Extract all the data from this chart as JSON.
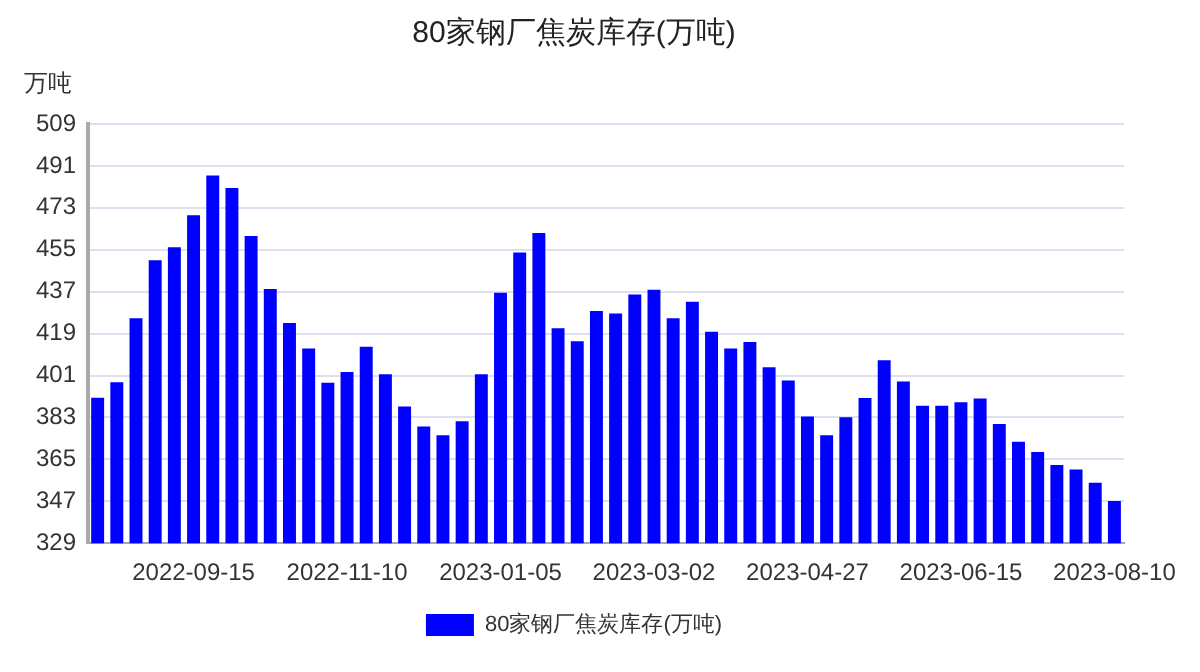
{
  "chart_data": {
    "type": "bar",
    "title": "80家钢厂焦炭库存(万吨)",
    "ylabel": "万吨",
    "categories": [
      null,
      null,
      null,
      null,
      null,
      "2022-09-15",
      null,
      null,
      null,
      null,
      null,
      null,
      null,
      "2022-11-10",
      null,
      null,
      null,
      null,
      null,
      null,
      null,
      "2023-01-05",
      null,
      null,
      null,
      null,
      null,
      null,
      null,
      "2023-03-02",
      null,
      null,
      null,
      null,
      null,
      null,
      null,
      "2023-04-27",
      null,
      null,
      null,
      null,
      null,
      null,
      null,
      "2023-06-15",
      null,
      null,
      null,
      null,
      null,
      null,
      null,
      "2023-08-10"
    ],
    "series": [
      {
        "name": "80家钢厂焦炭库存(万吨)",
        "color": "#0000ff",
        "values": [
          391.5,
          398.1,
          425.6,
          450.5,
          456.1,
          469.8,
          486.9,
          481.5,
          460.9,
          438.1,
          423.6,
          412.6,
          397.9,
          402.5,
          413.4,
          401.5,
          387.7,
          379.1,
          375.3,
          381.4,
          401.5,
          436.5,
          453.8,
          462.2,
          421.3,
          415.7,
          428.7,
          427.6,
          435.8,
          437.8,
          425.6,
          432.7,
          419.8,
          412.6,
          415.4,
          404.5,
          398.9,
          383.4,
          375.3,
          383.1,
          391.3,
          407.6,
          398.4,
          388.0,
          388.0,
          389.5,
          391.1,
          380.2,
          372.6,
          368.2,
          362.6,
          360.6,
          355.0,
          347.1
        ]
      }
    ],
    "ylim": [
      329,
      509
    ],
    "yticks": [
      329,
      347,
      365,
      383,
      401,
      419,
      437,
      455,
      473,
      491,
      509
    ],
    "grid": "y",
    "legend": "bottom"
  }
}
